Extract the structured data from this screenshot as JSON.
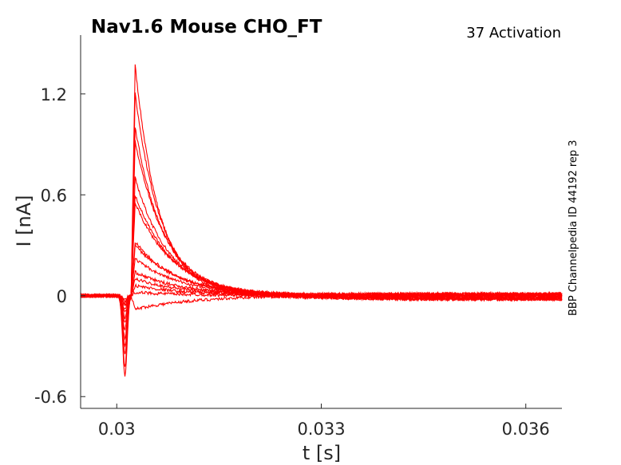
{
  "chart_data": {
    "type": "line",
    "title": "Nav1.6  Mouse  CHO_FT",
    "annotation": "37  Activation",
    "side_label": "BBP Channelpedia ID 44192 rep 3",
    "xlabel": "t [s]",
    "ylabel": "I [nA]",
    "xlim": [
      0.02947,
      0.03653
    ],
    "ylim": [
      -0.67,
      1.55
    ],
    "xticks": [
      0.03,
      0.033,
      0.036
    ],
    "xtick_labels": [
      "0.03",
      "0.033",
      "0.036"
    ],
    "yticks": [
      -0.6,
      0,
      0.6,
      1.2
    ],
    "ytick_labels": [
      "-0.6",
      "0",
      "0.6",
      "1.2"
    ],
    "grid": false,
    "line_color": "#ff0000",
    "peak_currents": [
      1.37,
      1.2,
      1.0,
      0.92,
      0.7,
      0.6,
      0.55,
      0.32,
      0.3,
      0.22,
      0.14,
      0.1,
      0.06,
      0.02,
      -0.08
    ],
    "inward_dips": [
      -0.48,
      -0.42,
      -0.35,
      -0.3,
      -0.25,
      -0.2,
      -0.16,
      -0.13,
      -0.1,
      -0.08,
      -0.06,
      -0.05,
      -0.04,
      -0.03,
      -0.02
    ]
  }
}
